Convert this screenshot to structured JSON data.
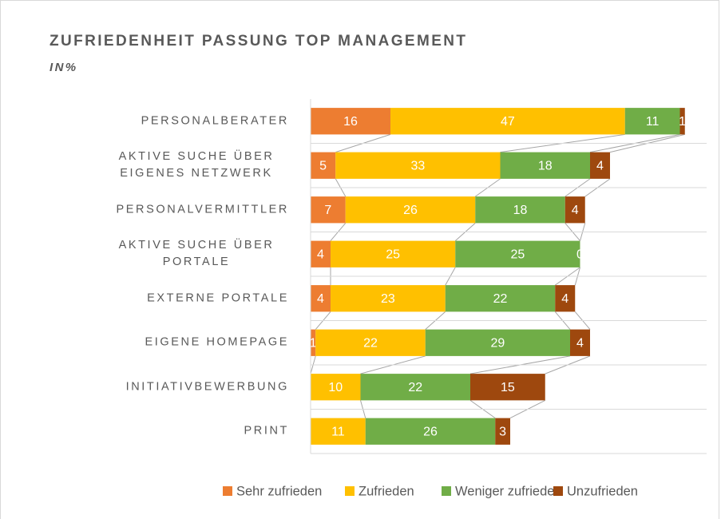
{
  "chart_data": {
    "type": "stacked_bar_horizontal",
    "title": "ZUFRIEDENHEIT PASSUNG TOP MANAGEMENT",
    "subtitle": "IN%",
    "categories": [
      "PERSONALBERATER",
      "AKTIVE SUCHE ÜBER EIGENES NETZWERK",
      "PERSONALVERMITTLER",
      "AKTIVE SUCHE ÜBER PORTALE",
      "EXTERNE PORTALE",
      "EIGENE HOMEPAGE",
      "INITIATIVBEWERBUNG",
      "PRINT"
    ],
    "series": [
      {
        "name": "Sehr zufrieden",
        "color": "#ED7D31",
        "values": [
          16,
          5,
          7,
          4,
          4,
          1,
          0,
          0
        ]
      },
      {
        "name": "Zufrieden",
        "color": "#FFC000",
        "values": [
          47,
          33,
          26,
          25,
          23,
          22,
          10,
          11
        ]
      },
      {
        "name": "Weniger zufrieden",
        "color": "#70AD47",
        "values": [
          11,
          18,
          18,
          25,
          22,
          29,
          22,
          26
        ]
      },
      {
        "name": "Unzufrieden",
        "color": "#9E480E",
        "values": [
          1,
          4,
          4,
          0,
          4,
          4,
          15,
          3
        ]
      }
    ],
    "xlim": [
      0,
      80
    ],
    "grid": true,
    "series_lines": true,
    "legend": "bottom"
  }
}
